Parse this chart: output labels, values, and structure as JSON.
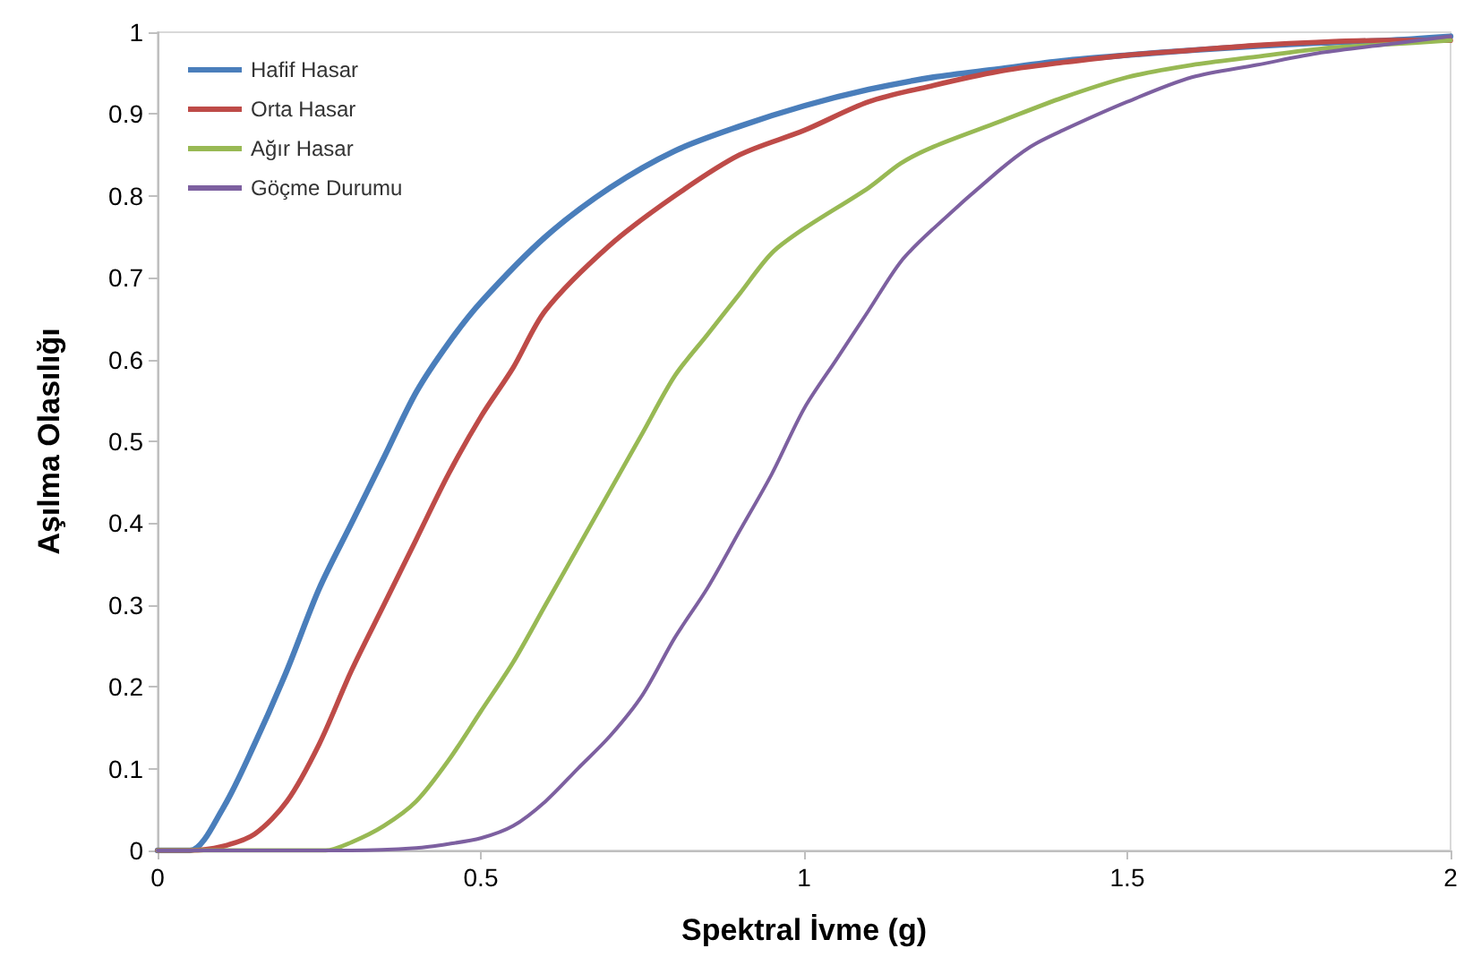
{
  "chart_data": {
    "type": "line",
    "xlabel": "Spektral İvme (g)",
    "ylabel": "Aşılma Olasılığı",
    "xlim": [
      0,
      2
    ],
    "xticks": [
      0,
      0.5,
      1,
      1.5,
      2
    ],
    "ylim": [
      0,
      1
    ],
    "yticks": [
      0,
      0.1,
      0.2,
      0.3,
      0.4,
      0.5,
      0.6,
      0.7,
      0.8,
      0.9,
      1
    ],
    "grid": false,
    "legend": "top left",
    "marker": "none",
    "line_style": "solid",
    "series": [
      {
        "name": "Hafif Hasar",
        "color": "#4a7ebb",
        "x": [
          0,
          0.05,
          0.1,
          0.15,
          0.2,
          0.25,
          0.3,
          0.35,
          0.4,
          0.45,
          0.5,
          0.6,
          0.7,
          0.8,
          0.9,
          1.0,
          1.1,
          1.2,
          1.3,
          1.4,
          1.5,
          1.6,
          1.7,
          1.8,
          1.9,
          2.0
        ],
        "values": [
          0,
          0,
          0.05,
          0.13,
          0.22,
          0.32,
          0.4,
          0.48,
          0.56,
          0.62,
          0.67,
          0.75,
          0.81,
          0.855,
          0.885,
          0.91,
          0.93,
          0.945,
          0.955,
          0.965,
          0.972,
          0.978,
          0.983,
          0.987,
          0.99,
          0.995
        ]
      },
      {
        "name": "Orta Hasar",
        "color": "#be4b48",
        "x": [
          0,
          0.05,
          0.1,
          0.15,
          0.2,
          0.25,
          0.3,
          0.35,
          0.4,
          0.45,
          0.5,
          0.55,
          0.6,
          0.7,
          0.8,
          0.9,
          1.0,
          1.1,
          1.2,
          1.3,
          1.4,
          1.5,
          1.6,
          1.7,
          1.8,
          1.9,
          2.0
        ],
        "values": [
          0,
          0,
          0.005,
          0.02,
          0.06,
          0.13,
          0.22,
          0.3,
          0.38,
          0.46,
          0.53,
          0.59,
          0.66,
          0.74,
          0.8,
          0.85,
          0.88,
          0.915,
          0.935,
          0.952,
          0.963,
          0.972,
          0.978,
          0.984,
          0.988,
          0.99,
          0.99
        ]
      },
      {
        "name": "Ağır Hasar",
        "color": "#98b954",
        "x": [
          0,
          0.26,
          0.3,
          0.35,
          0.4,
          0.45,
          0.5,
          0.55,
          0.6,
          0.65,
          0.7,
          0.75,
          0.8,
          0.85,
          0.9,
          0.95,
          1.0,
          1.1,
          1.15,
          1.2,
          1.3,
          1.4,
          1.5,
          1.6,
          1.7,
          1.8,
          1.9,
          2.0
        ],
        "values": [
          0,
          0,
          0.01,
          0.03,
          0.06,
          0.11,
          0.17,
          0.23,
          0.3,
          0.37,
          0.44,
          0.51,
          0.58,
          0.63,
          0.68,
          0.73,
          0.76,
          0.81,
          0.84,
          0.86,
          0.89,
          0.92,
          0.945,
          0.96,
          0.97,
          0.98,
          0.985,
          0.99
        ]
      },
      {
        "name": "Göçme Durumu",
        "color": "#7d60a0",
        "x": [
          0,
          0.3,
          0.4,
          0.45,
          0.5,
          0.55,
          0.6,
          0.65,
          0.7,
          0.75,
          0.8,
          0.85,
          0.9,
          0.95,
          1.0,
          1.05,
          1.1,
          1.15,
          1.2,
          1.3,
          1.35,
          1.4,
          1.5,
          1.6,
          1.7,
          1.8,
          1.9,
          2.0
        ],
        "values": [
          0,
          0,
          0.003,
          0.008,
          0.015,
          0.03,
          0.06,
          0.1,
          0.14,
          0.19,
          0.26,
          0.32,
          0.39,
          0.46,
          0.54,
          0.6,
          0.66,
          0.72,
          0.76,
          0.83,
          0.86,
          0.88,
          0.915,
          0.945,
          0.96,
          0.975,
          0.985,
          0.995
        ]
      }
    ]
  }
}
